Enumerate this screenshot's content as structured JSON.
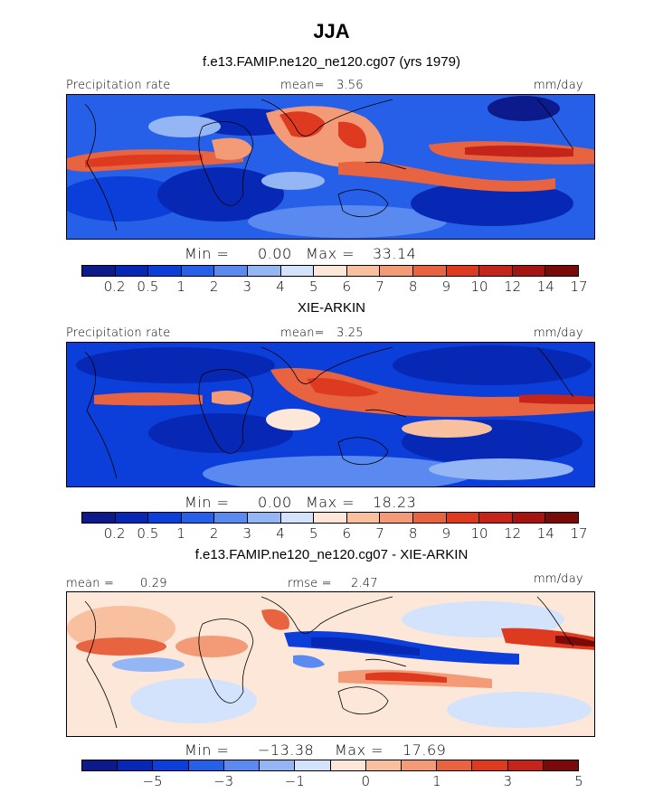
{
  "header": {
    "title": "JJA",
    "model_title": "f.e13.FAMIP.ne120_ne120.cg07 (yrs 1979)"
  },
  "palettes": {
    "abs": [
      "#0d1a8c",
      "#0628b4",
      "#0c3fd9",
      "#2660e8",
      "#5a8af0",
      "#94b6f5",
      "#d2e3fb",
      "#fde7d8",
      "#f9c0a0",
      "#f39a77",
      "#e8633f",
      "#dd3a20",
      "#c4241a",
      "#a51410",
      "#7a0a08"
    ],
    "diff": [
      "#0d1a8c",
      "#0628b4",
      "#0c3fd9",
      "#2660e8",
      "#5a8af0",
      "#94b6f5",
      "#d2e3fb",
      "#fde7d8",
      "#f9c0a0",
      "#f39a77",
      "#e8633f",
      "#dd3a20",
      "#c4241a",
      "#7a0a08"
    ]
  },
  "chart_data": [
    {
      "type": "heatmap",
      "panel": "model",
      "left_label": "Precipitation rate",
      "mean_label": "mean=",
      "mean_value": "3.56",
      "units": "mm/day",
      "min_label": "Min =",
      "min_value": "0.00",
      "max_label": "Max =",
      "max_value": "33.14",
      "colorbar_ticks": [
        "0.2",
        "0.5",
        "1",
        "2",
        "3",
        "4",
        "5",
        "6",
        "7",
        "8",
        "9",
        "10",
        "12",
        "14",
        "17"
      ],
      "levels": [
        0.2,
        0.5,
        1,
        2,
        3,
        4,
        5,
        6,
        7,
        8,
        9,
        10,
        12,
        14,
        17
      ]
    },
    {
      "type": "heatmap",
      "panel": "obs",
      "title": "XIE-ARKIN",
      "left_label": "Precipitation rate",
      "mean_label": "mean=",
      "mean_value": "3.25",
      "units": "mm/day",
      "min_label": "Min =",
      "min_value": "0.00",
      "max_label": "Max =",
      "max_value": "18.23",
      "colorbar_ticks": [
        "0.2",
        "0.5",
        "1",
        "2",
        "3",
        "4",
        "5",
        "6",
        "7",
        "8",
        "9",
        "10",
        "12",
        "14",
        "17"
      ],
      "levels": [
        0.2,
        0.5,
        1,
        2,
        3,
        4,
        5,
        6,
        7,
        8,
        9,
        10,
        12,
        14,
        17
      ]
    },
    {
      "type": "heatmap",
      "panel": "diff",
      "title": "f.e13.FAMIP.ne120_ne120.cg07 - XIE-ARKIN",
      "mean_label": "mean =",
      "mean_value": "0.29",
      "rmse_label": "rmse =",
      "rmse_value": "2.47",
      "units": "mm/day",
      "min_label": "Min =",
      "min_value": "−13.38",
      "max_label": "Max =",
      "max_value": "17.69",
      "colorbar_ticks": [
        "−5",
        "−3",
        "−1",
        "0",
        "1",
        "3",
        "5"
      ],
      "levels": [
        -6,
        -5,
        -4,
        -3,
        -2,
        -1,
        0,
        0.5,
        1,
        2,
        3,
        4,
        5,
        6
      ]
    }
  ]
}
